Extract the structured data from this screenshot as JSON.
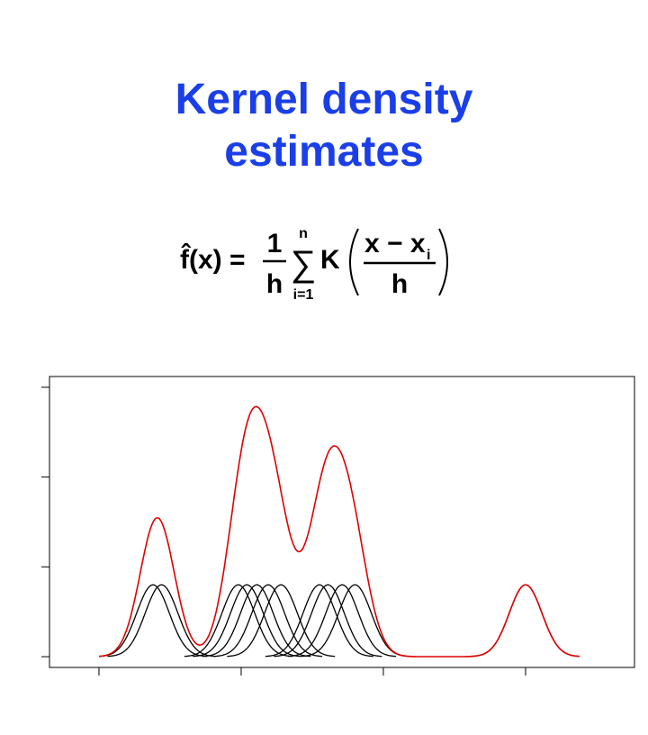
{
  "title": "Kernel density estimates",
  "formula": {
    "lhs": "f̂(x) =",
    "numerator": "1",
    "denominator": "h",
    "sum": "∑",
    "sum_upper": "n",
    "sum_lower": "i=1",
    "kernel": "K",
    "arg_numerator": "x − x",
    "arg_subscript": "i",
    "arg_denominator": "h"
  },
  "chart_data": {
    "type": "kde",
    "observations": [
      3.8,
      4.4,
      9.8,
      10.4,
      11.1,
      11.9,
      12.8,
      15.5,
      16.1,
      17.1,
      18.0,
      30.0
    ],
    "bandwidth": 1.15,
    "kernel_peak": 0.04,
    "kernel_color": "#000000",
    "density_color": "#e00000",
    "xlim": [
      -3.48,
      37.66
    ],
    "ylim": [
      -0.006,
      0.156
    ],
    "xticks": [
      0,
      10,
      20,
      30
    ],
    "yticks": [
      0,
      0.05,
      0.1,
      0.15
    ]
  }
}
